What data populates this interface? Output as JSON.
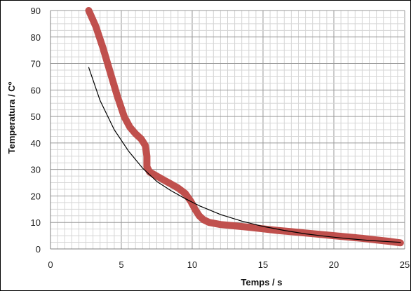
{
  "chart_data": {
    "type": "line",
    "title": "",
    "xlabel": "Temps / s",
    "ylabel": "Temperatura / Cº",
    "xlim": [
      0,
      25
    ],
    "ylim": [
      0,
      90
    ],
    "x_ticks": [
      "0",
      "5",
      "10",
      "15",
      "20",
      "25"
    ],
    "y_ticks": [
      "0",
      "10",
      "20",
      "30",
      "40",
      "50",
      "60",
      "70",
      "80",
      "90"
    ],
    "grid": true,
    "legend": "none",
    "series": [
      {
        "color": "#c0504d",
        "style": "thick",
        "points": [
          [
            2.7,
            90
          ],
          [
            3.2,
            84
          ],
          [
            3.7,
            76
          ],
          [
            4.2,
            67
          ],
          [
            4.7,
            58
          ],
          [
            5.2,
            50
          ],
          [
            5.6,
            46
          ],
          [
            6.0,
            43.5
          ],
          [
            6.4,
            41.5
          ],
          [
            6.7,
            39
          ],
          [
            6.8,
            35
          ],
          [
            6.8,
            31
          ],
          [
            7.0,
            29
          ],
          [
            7.5,
            27.5
          ],
          [
            8.0,
            26
          ],
          [
            8.5,
            24.5
          ],
          [
            9.0,
            23
          ],
          [
            9.5,
            21
          ],
          [
            9.9,
            18
          ],
          [
            10.2,
            15
          ],
          [
            10.5,
            12.5
          ],
          [
            10.8,
            11
          ],
          [
            11.2,
            10
          ],
          [
            12.0,
            9.2
          ],
          [
            13.0,
            8.7
          ],
          [
            14.0,
            8.2
          ],
          [
            15.0,
            7.6
          ],
          [
            16.0,
            7.0
          ],
          [
            17.0,
            6.5
          ],
          [
            18.0,
            6.0
          ],
          [
            19.0,
            5.5
          ],
          [
            20.0,
            5.0
          ],
          [
            21.0,
            4.5
          ],
          [
            22.0,
            4.0
          ],
          [
            23.0,
            3.4
          ],
          [
            24.0,
            2.8
          ],
          [
            24.7,
            2.3
          ]
        ]
      },
      {
        "color": "#000000",
        "style": "thin",
        "points": [
          [
            2.7,
            68.5
          ],
          [
            3.5,
            56
          ],
          [
            4.5,
            45
          ],
          [
            5.5,
            37
          ],
          [
            6.5,
            30.5
          ],
          [
            7.5,
            25.5
          ],
          [
            8.5,
            22
          ],
          [
            9.5,
            19
          ],
          [
            10.5,
            16.3
          ],
          [
            12.0,
            13
          ],
          [
            13.5,
            10.5
          ],
          [
            15.0,
            8.5
          ],
          [
            16.5,
            7.0
          ],
          [
            18.0,
            5.7
          ],
          [
            19.5,
            4.7
          ],
          [
            21.0,
            3.9
          ],
          [
            22.5,
            3.2
          ],
          [
            24.0,
            2.7
          ],
          [
            24.7,
            2.5
          ]
        ]
      }
    ]
  }
}
